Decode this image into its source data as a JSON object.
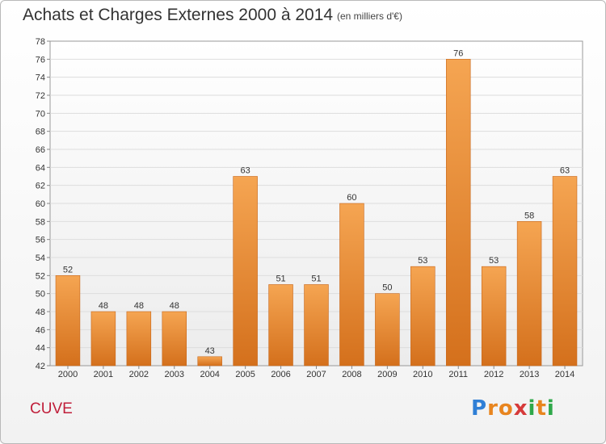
{
  "header": {
    "title": "Achats et Charges Externes 2000 à 2014",
    "subtitle": "(en milliers d'€)"
  },
  "footer": {
    "commune": "CUVE",
    "logo_letters": [
      {
        "ch": "P",
        "color": "#2f7fd6"
      },
      {
        "ch": "r",
        "color": "#e8851f"
      },
      {
        "ch": "o",
        "color": "#e8851f"
      },
      {
        "ch": "x",
        "color": "#d63a3a"
      },
      {
        "ch": "i",
        "color": "#2fa84a"
      },
      {
        "ch": "t",
        "color": "#e8851f"
      },
      {
        "ch": "i",
        "color": "#2fa84a"
      }
    ]
  },
  "chart_data": {
    "type": "bar",
    "title": "Achats et Charges Externes 2000 à 2014",
    "subtitle": "(en milliers d'€)",
    "categories": [
      "2000",
      "2001",
      "2002",
      "2003",
      "2004",
      "2005",
      "2006",
      "2007",
      "2008",
      "2009",
      "2010",
      "2011",
      "2012",
      "2013",
      "2014"
    ],
    "values": [
      52,
      48,
      48,
      48,
      43,
      63,
      51,
      51,
      60,
      50,
      53,
      76,
      53,
      58,
      63
    ],
    "ylim": [
      42,
      78
    ],
    "ytick_step": 2,
    "grid": true,
    "bar_color_light": "#f5a552",
    "bar_color_dark": "#d4701c"
  }
}
